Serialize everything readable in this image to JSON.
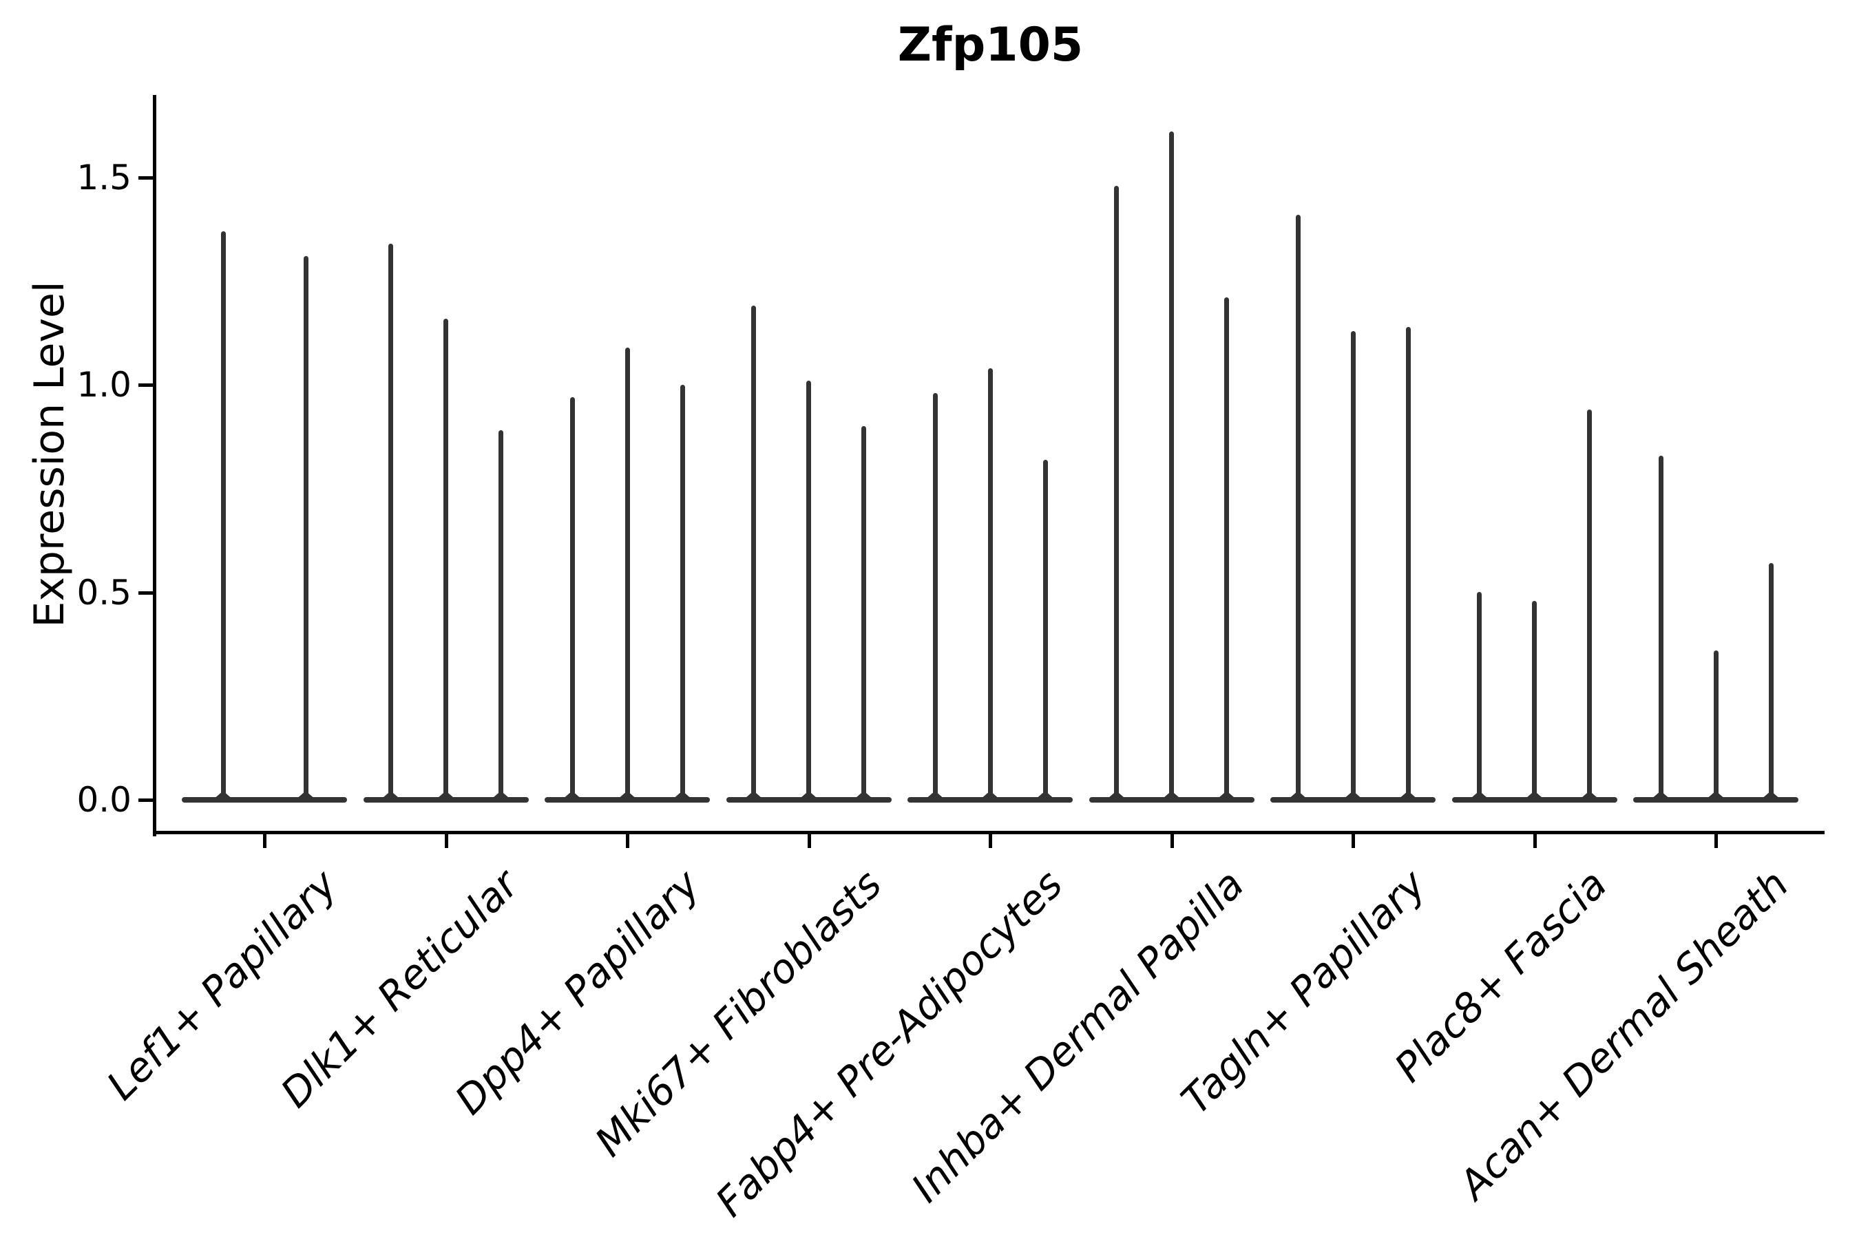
{
  "chart_data": {
    "type": "violin",
    "title": "Zfp105",
    "ylabel": "Expression Level",
    "xlabel": "",
    "yticks": [
      0.0,
      0.5,
      1.0,
      1.5
    ],
    "ytick_labels": [
      "0.0",
      "0.5",
      "1.0",
      "1.5"
    ],
    "ylim": [
      -0.08,
      1.695
    ],
    "grid": false,
    "legend": "none",
    "violin_color": "#333333",
    "axis_color": "#000000",
    "description": "Zero-inflated expression violins: each group has a wide flat base at 0 and thin spikes; spike tops listed as violin_maxima (expression level units).",
    "groups": [
      {
        "label": "Lef1+ Papillary",
        "violin_maxima": [
          1.37,
          1.31
        ]
      },
      {
        "label": "Dlk1+ Reticular",
        "violin_maxima": [
          1.34,
          1.16,
          0.89
        ]
      },
      {
        "label": "Dpp4+ Papillary",
        "violin_maxima": [
          0.97,
          1.09,
          1.0
        ]
      },
      {
        "label": "Mki67+ Fibroblasts",
        "violin_maxima": [
          1.19,
          1.01,
          0.9
        ]
      },
      {
        "label": "Fabp4+ Pre-Adipocytes",
        "violin_maxima": [
          0.98,
          1.04,
          0.82
        ]
      },
      {
        "label": "Inhba+ Dermal Papilla",
        "violin_maxima": [
          1.48,
          1.61,
          1.21
        ]
      },
      {
        "label": "Tagln+ Papillary",
        "violin_maxima": [
          1.41,
          1.13,
          1.14
        ]
      },
      {
        "label": "Plac8+ Fascia",
        "violin_maxima": [
          0.5,
          0.48,
          0.94
        ]
      },
      {
        "label": "Acan+ Dermal Sheath",
        "violin_maxima": [
          0.83,
          0.36,
          0.57
        ]
      }
    ]
  }
}
